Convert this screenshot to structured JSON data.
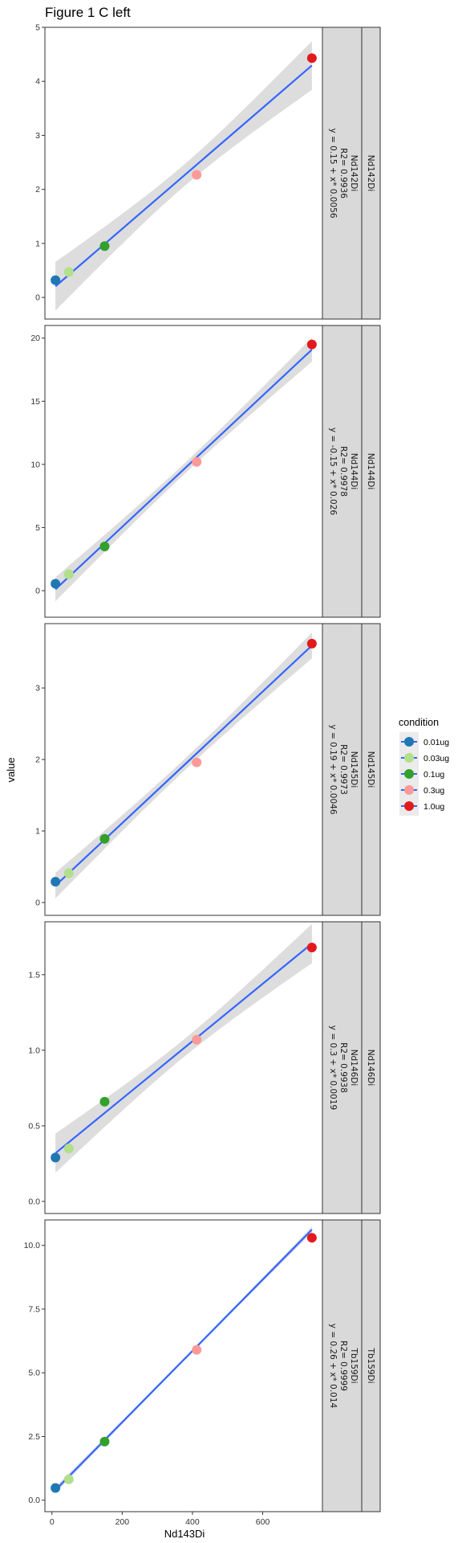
{
  "chart_data": {
    "type": "scatter",
    "title": "Figure 1 C left",
    "xlabel": "Nd143Di",
    "ylabel": "value",
    "xlim": [
      -20,
      770
    ],
    "x_ticks": [
      "0",
      "200",
      "400",
      "600"
    ],
    "x_tick_values": [
      0,
      200,
      400,
      600
    ],
    "legend": {
      "title": "condition",
      "position": "right",
      "entries": [
        {
          "label": "0.01ug",
          "color": "#1F78B4"
        },
        {
          "label": "0.03ug",
          "color": "#B2DF8A"
        },
        {
          "label": "0.1ug",
          "color": "#33A02C"
        },
        {
          "label": "0.3ug",
          "color": "#FB9A99"
        },
        {
          "label": "1.0ug",
          "color": "#E31A1C"
        }
      ]
    },
    "fit_line_color": "#3366FF",
    "ribbon_color": "#D9D9D9",
    "panels": [
      {
        "strip": "Nd142Di",
        "equation_lines": [
          "Nd142Di",
          "R2= 0.9936",
          "y = 0.15 + x* 0.0056"
        ],
        "ylim": [
          -0.4,
          5.0
        ],
        "y_ticks": [
          "0",
          "1",
          "2",
          "3",
          "4",
          "5"
        ],
        "y_tick_values": [
          0,
          1,
          2,
          3,
          4,
          5
        ],
        "points": [
          {
            "condition": "0.01ug",
            "x": 10,
            "y": 0.32
          },
          {
            "condition": "0.03ug",
            "x": 48,
            "y": 0.47
          },
          {
            "condition": "0.1ug",
            "x": 150,
            "y": 0.95
          },
          {
            "condition": "0.3ug",
            "x": 412,
            "y": 2.27
          },
          {
            "condition": "1.0ug",
            "x": 740,
            "y": 4.43
          }
        ],
        "fit": {
          "intercept": 0.15,
          "slope": 0.0056
        },
        "ci": 0.45
      },
      {
        "strip": "Nd144Di",
        "equation_lines": [
          "Nd144Di",
          "R2= 0.9978",
          "y = -0.15 + x* 0.026"
        ],
        "ylim": [
          -2.1,
          21.0
        ],
        "y_ticks": [
          "0",
          "5",
          "10",
          "15",
          "20"
        ],
        "y_tick_values": [
          0,
          5,
          10,
          15,
          20
        ],
        "points": [
          {
            "condition": "0.01ug",
            "x": 10,
            "y": 0.55
          },
          {
            "condition": "0.03ug",
            "x": 48,
            "y": 1.3
          },
          {
            "condition": "0.1ug",
            "x": 150,
            "y": 3.5
          },
          {
            "condition": "0.3ug",
            "x": 412,
            "y": 10.2
          },
          {
            "condition": "1.0ug",
            "x": 740,
            "y": 19.5
          }
        ],
        "fit": {
          "intercept": -0.15,
          "slope": 0.026
        },
        "ci": 0.95
      },
      {
        "strip": "Nd145Di",
        "equation_lines": [
          "Nd145Di",
          "R2= 0.9973",
          "y = 0.19 + x* 0.0046"
        ],
        "ylim": [
          -0.18,
          3.9
        ],
        "y_ticks": [
          "0",
          "1",
          "2",
          "3"
        ],
        "y_tick_values": [
          0,
          1,
          2,
          3
        ],
        "points": [
          {
            "condition": "0.01ug",
            "x": 10,
            "y": 0.29
          },
          {
            "condition": "0.03ug",
            "x": 48,
            "y": 0.41
          },
          {
            "condition": "0.1ug",
            "x": 150,
            "y": 0.89
          },
          {
            "condition": "0.3ug",
            "x": 412,
            "y": 1.96
          },
          {
            "condition": "1.0ug",
            "x": 740,
            "y": 3.62
          }
        ],
        "fit": {
          "intercept": 0.19,
          "slope": 0.0046
        },
        "ci": 0.18
      },
      {
        "strip": "Nd146Di",
        "equation_lines": [
          "Nd146Di",
          "R2= 0.9938",
          "y = 0.3 + x* 0.0019"
        ],
        "ylim": [
          -0.08,
          1.85
        ],
        "y_ticks": [
          "0.0",
          "0.5",
          "1.0",
          "1.5"
        ],
        "y_tick_values": [
          0.0,
          0.5,
          1.0,
          1.5
        ],
        "points": [
          {
            "condition": "0.01ug",
            "x": 10,
            "y": 0.29
          },
          {
            "condition": "0.03ug",
            "x": 48,
            "y": 0.35
          },
          {
            "condition": "0.1ug",
            "x": 150,
            "y": 0.66
          },
          {
            "condition": "0.3ug",
            "x": 412,
            "y": 1.07
          },
          {
            "condition": "1.0ug",
            "x": 740,
            "y": 1.68
          }
        ],
        "fit": {
          "intercept": 0.3,
          "slope": 0.0019
        },
        "ci": 0.13
      },
      {
        "strip": "Tb159Di",
        "equation_lines": [
          "Tb159Di",
          "R2= 0.9999",
          "y = 0.26 + x* 0.014"
        ],
        "ylim": [
          -0.45,
          11.0
        ],
        "y_ticks": [
          "0.0",
          "2.5",
          "5.0",
          "7.5",
          "10.0"
        ],
        "y_tick_values": [
          0.0,
          2.5,
          5.0,
          7.5,
          10.0
        ],
        "points": [
          {
            "condition": "0.01ug",
            "x": 10,
            "y": 0.48
          },
          {
            "condition": "0.03ug",
            "x": 48,
            "y": 0.82
          },
          {
            "condition": "0.1ug",
            "x": 150,
            "y": 2.3
          },
          {
            "condition": "0.3ug",
            "x": 412,
            "y": 5.9
          },
          {
            "condition": "1.0ug",
            "x": 740,
            "y": 10.3
          }
        ],
        "fit": {
          "intercept": 0.26,
          "slope": 0.014
        },
        "ci": 0.12
      }
    ]
  }
}
